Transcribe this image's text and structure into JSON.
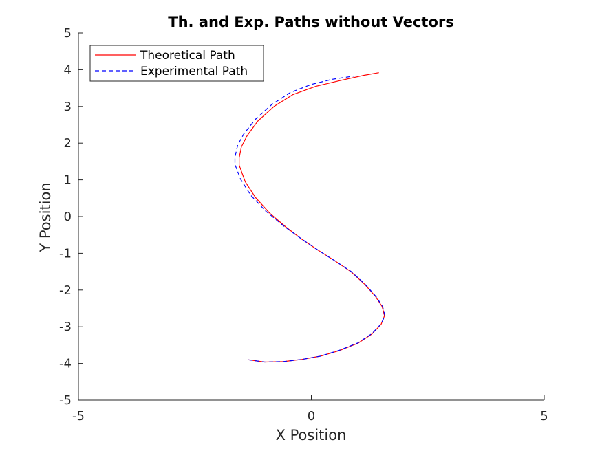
{
  "chart_data": {
    "type": "line",
    "title": "Th. and Exp. Paths without Vectors",
    "xlabel": "X Position",
    "ylabel": "Y Position",
    "xlim": [
      -5,
      5
    ],
    "ylim": [
      -5,
      5
    ],
    "xticks": [
      -5,
      0,
      5
    ],
    "yticks": [
      -5,
      -4,
      -3,
      -2,
      -1,
      0,
      1,
      2,
      3,
      4,
      5
    ],
    "x_tick_labels": [
      "-5",
      "0",
      "5"
    ],
    "y_tick_labels": [
      "-5",
      "-4",
      "-3",
      "-2",
      "-1",
      "0",
      "1",
      "2",
      "3",
      "4",
      "5"
    ],
    "grid": false,
    "legend_position": "top-left",
    "series": [
      {
        "name": "Theoretical Path",
        "color": "#ff0000",
        "dash": "solid",
        "points": [
          [
            -1.35,
            -3.9
          ],
          [
            -1.0,
            -3.96
          ],
          [
            -0.6,
            -3.95
          ],
          [
            -0.2,
            -3.89
          ],
          [
            0.2,
            -3.8
          ],
          [
            0.6,
            -3.65
          ],
          [
            1.0,
            -3.45
          ],
          [
            1.3,
            -3.2
          ],
          [
            1.5,
            -2.93
          ],
          [
            1.57,
            -2.7
          ],
          [
            1.52,
            -2.45
          ],
          [
            1.38,
            -2.18
          ],
          [
            1.15,
            -1.85
          ],
          [
            0.85,
            -1.5
          ],
          [
            0.5,
            -1.2
          ],
          [
            0.15,
            -0.92
          ],
          [
            -0.2,
            -0.62
          ],
          [
            -0.55,
            -0.28
          ],
          [
            -0.9,
            0.1
          ],
          [
            -1.2,
            0.52
          ],
          [
            -1.42,
            0.95
          ],
          [
            -1.55,
            1.4
          ],
          [
            -1.55,
            1.6
          ],
          [
            -1.5,
            1.9
          ],
          [
            -1.38,
            2.2
          ],
          [
            -1.15,
            2.6
          ],
          [
            -0.8,
            3.0
          ],
          [
            -0.4,
            3.32
          ],
          [
            0.1,
            3.55
          ],
          [
            0.6,
            3.7
          ],
          [
            1.1,
            3.84
          ],
          [
            1.45,
            3.92
          ]
        ]
      },
      {
        "name": "Experimental Path",
        "color": "#0000ff",
        "dash": "dashed",
        "points": [
          [
            -1.35,
            -3.9
          ],
          [
            -1.0,
            -3.96
          ],
          [
            -0.6,
            -3.95
          ],
          [
            -0.2,
            -3.89
          ],
          [
            0.2,
            -3.8
          ],
          [
            0.6,
            -3.64
          ],
          [
            1.0,
            -3.44
          ],
          [
            1.3,
            -3.19
          ],
          [
            1.5,
            -2.92
          ],
          [
            1.58,
            -2.7
          ],
          [
            1.53,
            -2.45
          ],
          [
            1.39,
            -2.18
          ],
          [
            1.16,
            -1.85
          ],
          [
            0.86,
            -1.5
          ],
          [
            0.5,
            -1.2
          ],
          [
            0.15,
            -0.92
          ],
          [
            -0.22,
            -0.6
          ],
          [
            -0.6,
            -0.25
          ],
          [
            -0.98,
            0.15
          ],
          [
            -1.3,
            0.58
          ],
          [
            -1.52,
            1.02
          ],
          [
            -1.64,
            1.42
          ],
          [
            -1.64,
            1.62
          ],
          [
            -1.58,
            1.95
          ],
          [
            -1.45,
            2.25
          ],
          [
            -1.2,
            2.65
          ],
          [
            -0.85,
            3.05
          ],
          [
            -0.45,
            3.38
          ],
          [
            0.0,
            3.6
          ],
          [
            0.45,
            3.74
          ],
          [
            0.92,
            3.83
          ]
        ]
      }
    ]
  }
}
